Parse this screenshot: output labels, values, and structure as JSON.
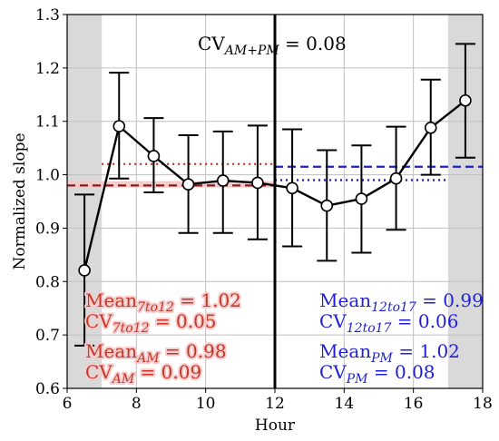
{
  "chart_data": {
    "type": "line",
    "xlabel": "Hour",
    "ylabel": "Normalized slope",
    "xlim": [
      6,
      18
    ],
    "ylim": [
      0.6,
      1.3
    ],
    "xticks": [
      6,
      8,
      10,
      12,
      14,
      16,
      18
    ],
    "yticks": [
      0.6,
      0.7,
      0.8,
      0.9,
      1.0,
      1.1,
      1.2,
      1.3
    ],
    "xtick_labels": [
      "6",
      "8",
      "10",
      "12",
      "14",
      "16",
      "18"
    ],
    "ytick_labels": [
      "0.6",
      "0.7",
      "0.8",
      "0.9",
      "1.0",
      "1.1",
      "1.2",
      "1.3"
    ],
    "grid": true,
    "series": [
      {
        "x": [
          6.5,
          7.5,
          8.5,
          9.5,
          10.5,
          11.5,
          12.5,
          13.5,
          14.5,
          15.5,
          16.5,
          17.5
        ],
        "y": [
          0.821,
          1.091,
          1.035,
          0.982,
          0.989,
          0.985,
          0.975,
          0.942,
          0.955,
          0.993,
          1.088,
          1.139
        ],
        "yerr_low": [
          0.68,
          0.993,
          0.967,
          0.891,
          0.891,
          0.879,
          0.866,
          0.839,
          0.854,
          0.897,
          1.0,
          1.032
        ],
        "yerr_high": [
          0.963,
          1.191,
          1.106,
          1.074,
          1.081,
          1.092,
          1.085,
          1.046,
          1.055,
          1.09,
          1.178,
          1.245
        ],
        "color": "#000000"
      }
    ],
    "shaded_regions": [
      {
        "x": [
          6,
          7
        ],
        "color": "#d9d9d9"
      },
      {
        "x": [
          17,
          18
        ],
        "color": "#d9d9d9"
      }
    ],
    "vertical_line": {
      "x": 12,
      "color": "#000000"
    },
    "reference_lines": [
      {
        "y": 0.98,
        "x": [
          6,
          12
        ],
        "style": "dashed",
        "color": "#8b1a1a",
        "band": [
          0.976,
          0.988
        ],
        "band_color": "#f4c7c7"
      },
      {
        "y": 1.02,
        "x": [
          7,
          12
        ],
        "style": "dotted",
        "color": "#c0392b"
      },
      {
        "y": 1.015,
        "x": [
          12,
          18
        ],
        "style": "dashed",
        "color": "#1f1fd6"
      },
      {
        "y": 0.99,
        "x": [
          12,
          17
        ],
        "style": "dotted",
        "color": "#1f1fd6"
      }
    ],
    "annotations": {
      "top": {
        "main": "CV",
        "sub": "AM+PM",
        "rest": " = 0.08",
        "color": "#000000"
      },
      "left": [
        {
          "main": "Mean",
          "sub": "7to12",
          "rest": " = 1.02",
          "color": "#c0392b"
        },
        {
          "main": "CV",
          "sub": "7to12",
          "rest": " = 0.05",
          "color": "#c0392b"
        },
        {
          "main": "Mean",
          "sub": "AM",
          "rest": " = 0.98",
          "color": "#c0392b"
        },
        {
          "main": "CV",
          "sub": "AM",
          "rest": " = 0.09",
          "color": "#c0392b"
        }
      ],
      "right": [
        {
          "main": "Mean",
          "sub": "12to17",
          "rest": " = 0.99",
          "color": "#1f1fd6"
        },
        {
          "main": "CV",
          "sub": "12to17",
          "rest": " = 0.06",
          "color": "#1f1fd6"
        },
        {
          "main": "Mean",
          "sub": "PM",
          "rest": " = 1.02",
          "color": "#1f1fd6"
        },
        {
          "main": "CV",
          "sub": "PM",
          "rest": " = 0.08",
          "color": "#1f1fd6"
        }
      ]
    }
  }
}
